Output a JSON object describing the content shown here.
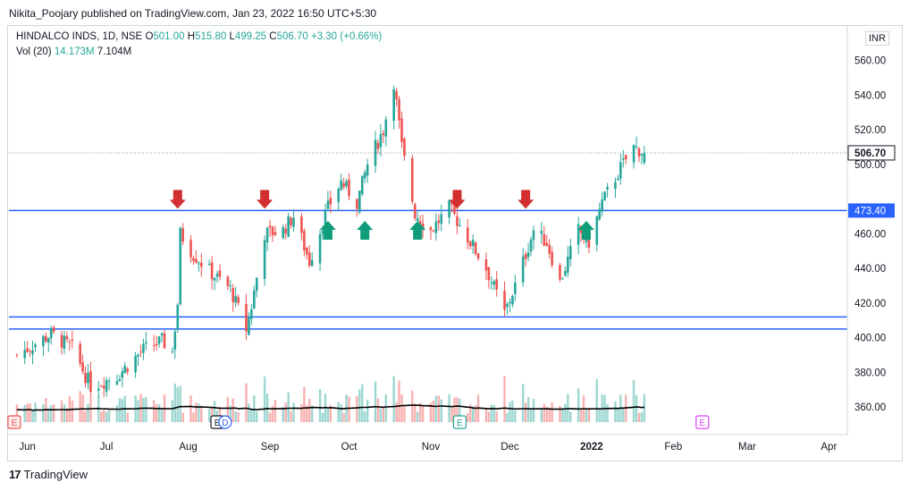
{
  "header": {
    "author": "Nikita_Poojary",
    "published_text": "published on TradingView.com, Jan 23, 2022 16:50 UTC+5:30"
  },
  "legend": {
    "symbol": "HINDALCO INDS, 1D, NSE",
    "o_label": "O",
    "o": "501.00",
    "h_label": "H",
    "h": "515.80",
    "l_label": "L",
    "l": "499.25",
    "c_label": "C",
    "c": "506.70",
    "change": "+3.30 (+0.66%)",
    "vol_label": "Vol (20)",
    "vol_ma": "14.173M",
    "vol": "7.104M"
  },
  "currency": "INR",
  "footer": {
    "brand": "TradingView"
  },
  "colors": {
    "up": "#26a69a",
    "down": "#ef5350",
    "hline": "#2962ff",
    "arrow_down": "#d32f2f",
    "arrow_up": "#0e9c7a",
    "volume_ma": "#000000",
    "price_label_bg": "#2962ff",
    "last_price_bg": "#ffffff"
  },
  "chart_data": {
    "type": "candlestick",
    "y_ticks": [
      "560.00",
      "540.00",
      "520.00",
      "500.00",
      "460.00",
      "440.00",
      "420.00",
      "400.00",
      "380.00",
      "360.00"
    ],
    "ylim": [
      344,
      580
    ],
    "x_ticks": [
      "Jun",
      "Jul",
      "Aug",
      "Sep",
      "Oct",
      "Nov",
      "Dec",
      "2022",
      "Feb",
      "Mar",
      "Apr"
    ],
    "last_price": "506.70",
    "level_label": "473.40",
    "horizontal_lines": [
      473.4,
      412.0,
      405.0
    ],
    "down_arrows": [
      "Jul 28, 2021",
      "Aug 30, 2021",
      "Nov 11, 2021",
      "Dec 7, 2021"
    ],
    "up_arrows": [
      "Sep 23, 2021",
      "Oct 7, 2021",
      "Oct 27, 2021",
      "Dec 30, 2021"
    ],
    "earnings_markers": [
      "E",
      "E",
      "D",
      "E",
      "E"
    ],
    "keyframes": [
      {
        "d": "2021-05-28",
        "p": 390
      },
      {
        "d": "2021-06-10",
        "p": 402
      },
      {
        "d": "2021-06-18",
        "p": 394
      },
      {
        "d": "2021-06-25",
        "p": 372
      },
      {
        "d": "2021-07-05",
        "p": 378
      },
      {
        "d": "2021-07-15",
        "p": 393
      },
      {
        "d": "2021-07-22",
        "p": 398
      },
      {
        "d": "2021-07-26",
        "p": 392
      },
      {
        "d": "2021-07-28",
        "p": 420
      },
      {
        "d": "2021-07-29",
        "p": 460
      },
      {
        "d": "2021-08-03",
        "p": 448
      },
      {
        "d": "2021-08-10",
        "p": 437
      },
      {
        "d": "2021-08-17",
        "p": 428
      },
      {
        "d": "2021-08-23",
        "p": 405
      },
      {
        "d": "2021-08-25",
        "p": 418
      },
      {
        "d": "2021-08-30",
        "p": 460
      },
      {
        "d": "2021-09-06",
        "p": 462
      },
      {
        "d": "2021-09-10",
        "p": 470
      },
      {
        "d": "2021-09-16",
        "p": 444
      },
      {
        "d": "2021-09-23",
        "p": 475
      },
      {
        "d": "2021-09-28",
        "p": 490
      },
      {
        "d": "2021-10-04",
        "p": 478
      },
      {
        "d": "2021-10-08",
        "p": 500
      },
      {
        "d": "2021-10-14",
        "p": 520
      },
      {
        "d": "2021-10-18",
        "p": 548
      },
      {
        "d": "2021-10-21",
        "p": 510
      },
      {
        "d": "2021-10-26",
        "p": 472
      },
      {
        "d": "2021-11-01",
        "p": 462
      },
      {
        "d": "2021-11-08",
        "p": 475
      },
      {
        "d": "2021-11-15",
        "p": 458
      },
      {
        "d": "2021-11-22",
        "p": 440
      },
      {
        "d": "2021-11-29",
        "p": 414
      },
      {
        "d": "2021-12-03",
        "p": 430
      },
      {
        "d": "2021-12-10",
        "p": 462
      },
      {
        "d": "2021-12-15",
        "p": 455
      },
      {
        "d": "2021-12-20",
        "p": 432
      },
      {
        "d": "2021-12-27",
        "p": 462
      },
      {
        "d": "2021-12-31",
        "p": 455
      },
      {
        "d": "2022-01-05",
        "p": 478
      },
      {
        "d": "2022-01-12",
        "p": 498
      },
      {
        "d": "2022-01-17",
        "p": 510
      },
      {
        "d": "2022-01-21",
        "p": 506.7
      }
    ]
  }
}
